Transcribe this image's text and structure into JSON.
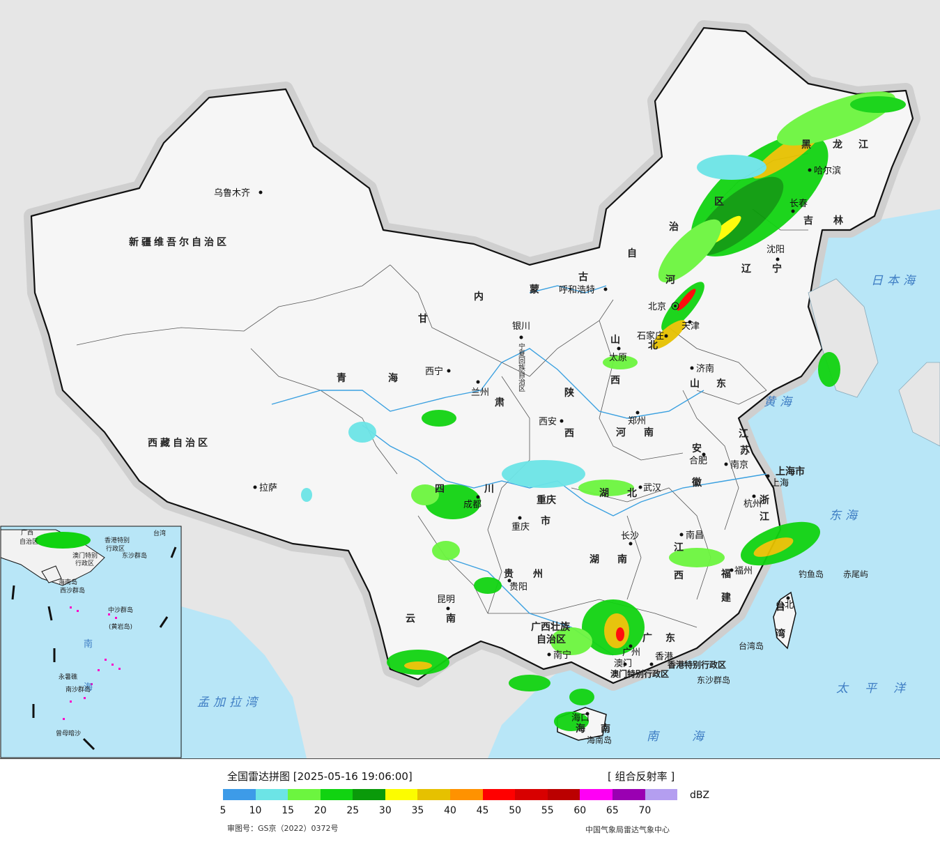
{
  "legend": {
    "title": "全国雷达拼图 [2025-05-16 19:06:00]",
    "product": "[ 组合反射率 ]",
    "unit": "dBZ",
    "ticks": [
      "5",
      "10",
      "15",
      "20",
      "25",
      "30",
      "35",
      "40",
      "45",
      "50",
      "55",
      "60",
      "65",
      "70"
    ],
    "colors": [
      "#3d9be8",
      "#6ce4e6",
      "#6cf53f",
      "#11d311",
      "#0a9a0a",
      "#fcfc00",
      "#e6c100",
      "#ff9200",
      "#ff0000",
      "#d80000",
      "#bb0000",
      "#ff00f5",
      "#9a00b2",
      "#b49ef0"
    ],
    "approval": "审图号：GS京（2022）0372号",
    "agency": "中国气象局雷达气象中心"
  },
  "map": {
    "colors": {
      "sea": "#b8e6f7",
      "land": "#f6f6f6",
      "foreign": "#e6e6e6",
      "border": "#111111",
      "river": "#3aa0e0"
    },
    "regions": [
      "新疆维吾尔自治区",
      "西藏自治区",
      "青海",
      "甘",
      "肃",
      "内",
      "蒙",
      "古",
      "自",
      "治",
      "区",
      "黑",
      "龙",
      "江",
      "吉",
      "林",
      "辽",
      "宁",
      "河",
      "北",
      "山",
      "西",
      "陕",
      "西",
      "河",
      "南",
      "山",
      "东",
      "江",
      "苏",
      "安",
      "徽",
      "湖",
      "北",
      "湖",
      "南",
      "江",
      "西",
      "浙",
      "江",
      "福",
      "建",
      "广",
      "东",
      "广西壮族",
      "自治区",
      "云",
      "南",
      "贵",
      "州",
      "四",
      "川",
      "重庆",
      "市",
      "上海市",
      "台",
      "湾",
      "海",
      "南"
    ],
    "cities": [
      "乌鲁木齐",
      "拉萨",
      "西宁",
      "兰州",
      "银川",
      "呼和浩特",
      "北京",
      "天津",
      "石家庄",
      "太原",
      "济南",
      "郑州",
      "西安",
      "成都",
      "重庆",
      "武汉",
      "合肥",
      "南京",
      "上海",
      "杭州",
      "南昌",
      "长沙",
      "福州",
      "贵阳",
      "昆明",
      "南宁",
      "广州",
      "澳门",
      "香港",
      "海口",
      "沈阳",
      "长春",
      "哈尔滨",
      "台北"
    ],
    "seas": [
      "日本海",
      "黄海",
      "东海",
      "太平洋",
      "南海",
      "孟加拉湾"
    ],
    "islands": [
      "钓鱼岛",
      "赤尾屿",
      "台湾岛",
      "东沙群岛",
      "海南岛",
      "香港特别行政区",
      "澳门特别行政区"
    ],
    "inset": [
      "广西",
      "自治区",
      "香港特别",
      "行政区",
      "澳门特别",
      "行政区",
      "东沙群岛",
      "海南岛",
      "西沙群岛",
      "中沙群岛",
      "(黄岩岛)",
      "南",
      "海",
      "永暑礁",
      "南沙群岛",
      "曾母暗沙",
      "台湾"
    ],
    "ning_vertical": "宁夏回族自治区"
  }
}
